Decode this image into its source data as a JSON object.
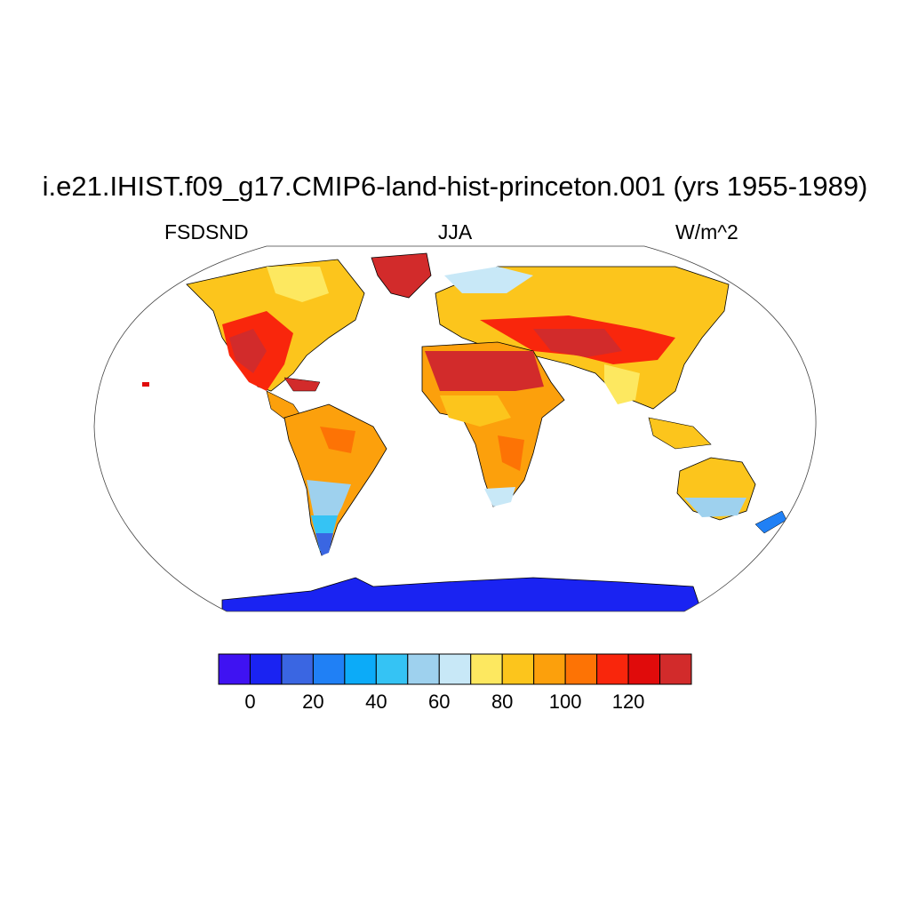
{
  "header": {
    "title": "i.e21.IHIST.f09_g17.CMIP6-land-hist-princeton.001 (yrs 1955-1989)",
    "left": "FSDSND",
    "center": "JJA",
    "right": "W/m^2"
  },
  "colorbar": {
    "colors": [
      "#3f12f2",
      "#1a23f2",
      "#3a66e2",
      "#2080f5",
      "#0cabf8",
      "#35c3f4",
      "#9ed1ee",
      "#c8e8f7",
      "#fde860",
      "#fcc51c",
      "#fca00c",
      "#fd7305",
      "#f9260c",
      "#e00b0b",
      "#d22b2b"
    ],
    "tick_labels": [
      "0",
      "20",
      "40",
      "60",
      "80",
      "100",
      "120"
    ],
    "tick_values": [
      0,
      20,
      40,
      60,
      80,
      100,
      120
    ],
    "min": -10,
    "max": 140,
    "interval": 10
  },
  "map": {
    "projection": "Robinson",
    "ocean_color": "#ffffff",
    "coastline_color": "#000000"
  }
}
